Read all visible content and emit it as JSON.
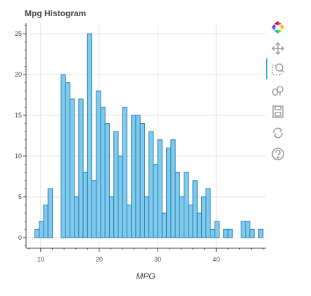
{
  "chart_data": {
    "type": "bar",
    "title": "Mpg Histogram",
    "xlabel": "MPG",
    "ylabel": "",
    "xlim": [
      7.5,
      48.5
    ],
    "ylim": [
      -1.3,
      26.3
    ],
    "x_ticks": [
      10,
      20,
      30,
      40
    ],
    "y_ticks": [
      0,
      5,
      10,
      15,
      20,
      25
    ],
    "grid": true,
    "bin_start": 9.0,
    "bin_width": 0.75,
    "values": [
      1,
      2,
      4,
      6,
      0,
      0,
      20,
      19,
      17,
      5,
      17,
      8,
      25,
      7,
      18,
      16,
      14,
      5,
      13,
      10,
      16,
      4,
      15,
      15,
      14,
      5,
      13,
      9,
      12,
      3,
      11,
      12,
      8,
      5,
      8,
      4,
      7,
      3,
      5,
      6,
      1,
      2,
      0,
      1,
      1,
      0,
      0,
      2,
      2,
      1,
      0,
      1
    ],
    "fill_color": "#7ecbeb",
    "line_color": "#2a7db5"
  },
  "toolbar": {
    "tools": [
      {
        "name": "bokeh-logo-icon",
        "active": false
      },
      {
        "name": "pan-tool-icon",
        "active": true
      },
      {
        "name": "box-zoom-tool-icon",
        "active": false
      },
      {
        "name": "wheel-zoom-tool-icon",
        "active": false
      },
      {
        "name": "save-tool-icon",
        "active": false
      },
      {
        "name": "reset-tool-icon",
        "active": false
      },
      {
        "name": "help-tool-icon",
        "active": false
      }
    ]
  }
}
